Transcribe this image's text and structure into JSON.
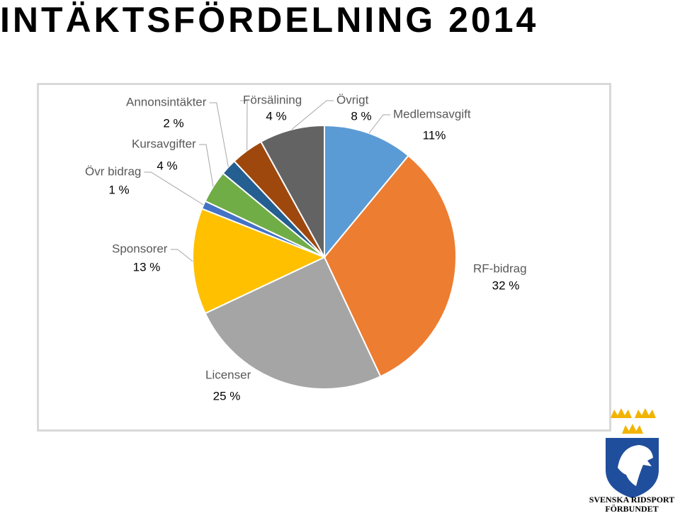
{
  "title": "INTÄKTSFÖRDELNING 2014",
  "chart_data": {
    "type": "pie",
    "categories": [
      "Medlemsavgift",
      "RF-bidrag",
      "Licenser",
      "Sponsorer",
      "Övr bidrag",
      "Kursavgifter",
      "Annonsintäkter",
      "Försälining",
      "Övrigt"
    ],
    "values": [
      11,
      32,
      25,
      13,
      1,
      4,
      2,
      4,
      8
    ],
    "value_labels": [
      "11%",
      "32 %",
      "25 %",
      "13 %",
      "1 %",
      "4 %",
      "2 %",
      "4 %",
      "8 %"
    ],
    "colors": [
      "#5b9bd5",
      "#ed7d31",
      "#a5a5a5",
      "#ffc000",
      "#4472c4",
      "#70ad47",
      "#255e91",
      "#9e480e",
      "#636363"
    ]
  },
  "logo": {
    "lines": [
      "SVENSKA RIDSPORT",
      "FÖRBUNDET"
    ]
  }
}
